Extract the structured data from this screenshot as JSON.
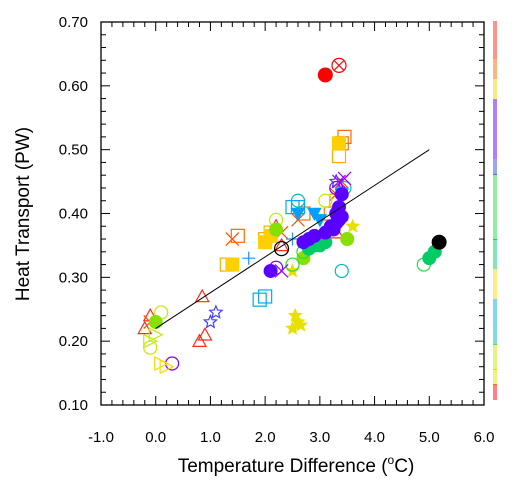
{
  "chart_data": {
    "type": "scatter",
    "title": "",
    "xlabel_main": "Temperature Difference (",
    "xlabel_sup": "o",
    "xlabel_tail": "C)",
    "ylabel": "Heat Transport (PW)",
    "xlim": [
      -1.0,
      6.0
    ],
    "ylim": [
      0.1,
      0.7
    ],
    "xticks": [
      "-1.0",
      "0.0",
      "1.0",
      "2.0",
      "3.0",
      "4.0",
      "5.0",
      "6.0"
    ],
    "yticks": [
      "0.10",
      "0.20",
      "0.30",
      "0.40",
      "0.50",
      "0.60",
      "0.70"
    ],
    "grid": false,
    "legend": "right strip",
    "regression_line": {
      "x": [
        0.0,
        5.0
      ],
      "y": [
        0.22,
        0.5
      ],
      "color": "#000000"
    },
    "highlight_points": [
      {
        "x": 3.1,
        "y": 0.617,
        "marker": "filled-circle",
        "color": "#ff0000"
      },
      {
        "x": 3.35,
        "y": 0.632,
        "marker": "circle-x",
        "color": "#ff0000"
      },
      {
        "x": 2.3,
        "y": 0.345,
        "marker": "open-circle",
        "color": "#000000"
      },
      {
        "x": 5.18,
        "y": 0.355,
        "marker": "filled-circle",
        "color": "#000000"
      }
    ],
    "series": [
      {
        "color": "#ff2a1a",
        "marker": "open-triangle",
        "points": [
          [
            -0.2,
            0.22
          ],
          [
            -0.1,
            0.24
          ],
          [
            0.85,
            0.27
          ],
          [
            0.8,
            0.2
          ],
          [
            0.9,
            0.21
          ],
          [
            2.2,
            0.38
          ],
          [
            2.3,
            0.35
          ],
          [
            3.3,
            0.37
          ]
        ]
      },
      {
        "color": "#ff4a00",
        "marker": "x",
        "points": [
          [
            -0.1,
            0.23
          ],
          [
            1.4,
            0.36
          ],
          [
            2.3,
            0.37
          ],
          [
            2.6,
            0.39
          ],
          [
            3.3,
            0.43
          ],
          [
            3.4,
            0.45
          ]
        ]
      },
      {
        "color": "#ff6a00",
        "marker": "open-square",
        "points": [
          [
            1.5,
            0.365
          ],
          [
            2.7,
            0.4
          ],
          [
            3.4,
            0.51
          ],
          [
            3.45,
            0.52
          ],
          [
            3.2,
            0.4
          ]
        ]
      },
      {
        "color": "#ffaa00",
        "marker": "open-square",
        "points": [
          [
            1.3,
            0.32
          ],
          [
            2.0,
            0.36
          ],
          [
            2.1,
            0.37
          ],
          [
            3.35,
            0.49
          ],
          [
            3.3,
            0.42
          ]
        ]
      },
      {
        "color": "#ffd000",
        "marker": "filled-square",
        "points": [
          [
            1.4,
            0.32
          ],
          [
            2.0,
            0.355
          ],
          [
            2.1,
            0.365
          ],
          [
            3.35,
            0.51
          ]
        ]
      },
      {
        "color": "#e8e000",
        "marker": "filled-star",
        "points": [
          [
            2.5,
            0.31
          ],
          [
            2.55,
            0.24
          ],
          [
            2.6,
            0.23
          ],
          [
            2.65,
            0.225
          ],
          [
            2.5,
            0.22
          ],
          [
            3.6,
            0.38
          ]
        ]
      },
      {
        "color": "#c8e800",
        "marker": "open-circle",
        "points": [
          [
            -0.1,
            0.19
          ],
          [
            0.1,
            0.245
          ],
          [
            2.2,
            0.39
          ],
          [
            3.1,
            0.42
          ]
        ]
      },
      {
        "color": "#88e000",
        "marker": "filled-circle",
        "points": [
          [
            0.0,
            0.23
          ],
          [
            2.2,
            0.375
          ],
          [
            2.7,
            0.33
          ],
          [
            3.5,
            0.36
          ]
        ]
      },
      {
        "color": "#22dd44",
        "marker": "open-circle",
        "points": [
          [
            4.9,
            0.32
          ],
          [
            2.5,
            0.32
          ],
          [
            2.7,
            0.34
          ]
        ]
      },
      {
        "color": "#00cc66",
        "marker": "filled-circle",
        "points": [
          [
            5.0,
            0.33
          ],
          [
            5.1,
            0.34
          ],
          [
            2.8,
            0.345
          ],
          [
            3.0,
            0.35
          ],
          [
            3.1,
            0.355
          ],
          [
            2.9,
            0.35
          ]
        ]
      },
      {
        "color": "#00bbbb",
        "marker": "open-circle",
        "points": [
          [
            3.4,
            0.31
          ],
          [
            2.6,
            0.42
          ],
          [
            3.45,
            0.44
          ]
        ]
      },
      {
        "color": "#00aaee",
        "marker": "open-square",
        "points": [
          [
            1.9,
            0.265
          ],
          [
            2.0,
            0.27
          ],
          [
            2.6,
            0.41
          ],
          [
            2.5,
            0.41
          ]
        ]
      },
      {
        "color": "#00a0ff",
        "marker": "filled-triangle-down",
        "points": [
          [
            2.6,
            0.4
          ],
          [
            2.9,
            0.4
          ],
          [
            3.0,
            0.39
          ],
          [
            3.4,
            0.43
          ]
        ]
      },
      {
        "color": "#1e90ff",
        "marker": "plus",
        "points": [
          [
            1.7,
            0.33
          ],
          [
            2.5,
            0.36
          ],
          [
            3.4,
            0.44
          ]
        ]
      },
      {
        "color": "#4040ff",
        "marker": "open-star",
        "points": [
          [
            1.1,
            0.245
          ],
          [
            1.0,
            0.23
          ],
          [
            3.3,
            0.45
          ]
        ]
      },
      {
        "color": "#5a00ff",
        "marker": "filled-circle",
        "points": [
          [
            2.1,
            0.31
          ],
          [
            3.2,
            0.38
          ],
          [
            3.3,
            0.385
          ],
          [
            3.35,
            0.39
          ],
          [
            3.4,
            0.395
          ],
          [
            3.3,
            0.4
          ],
          [
            3.35,
            0.41
          ],
          [
            3.4,
            0.43
          ],
          [
            3.25,
            0.375
          ],
          [
            3.1,
            0.37
          ],
          [
            2.9,
            0.365
          ],
          [
            2.8,
            0.36
          ],
          [
            2.7,
            0.355
          ]
        ]
      },
      {
        "color": "#7a00ff",
        "marker": "open-circle",
        "points": [
          [
            0.3,
            0.165
          ],
          [
            2.2,
            0.315
          ],
          [
            3.3,
            0.44
          ]
        ]
      },
      {
        "color": "#9900ff",
        "marker": "x",
        "points": [
          [
            2.3,
            0.31
          ],
          [
            3.35,
            0.45
          ],
          [
            3.45,
            0.455
          ]
        ]
      },
      {
        "color": "#ffd700",
        "marker": "open-triangle-right",
        "points": [
          [
            0.1,
            0.165
          ],
          [
            0.2,
            0.16
          ]
        ]
      },
      {
        "color": "#b8f000",
        "marker": "open-triangle-right",
        "points": [
          [
            -0.1,
            0.2
          ],
          [
            0.0,
            0.21
          ]
        ]
      }
    ]
  }
}
